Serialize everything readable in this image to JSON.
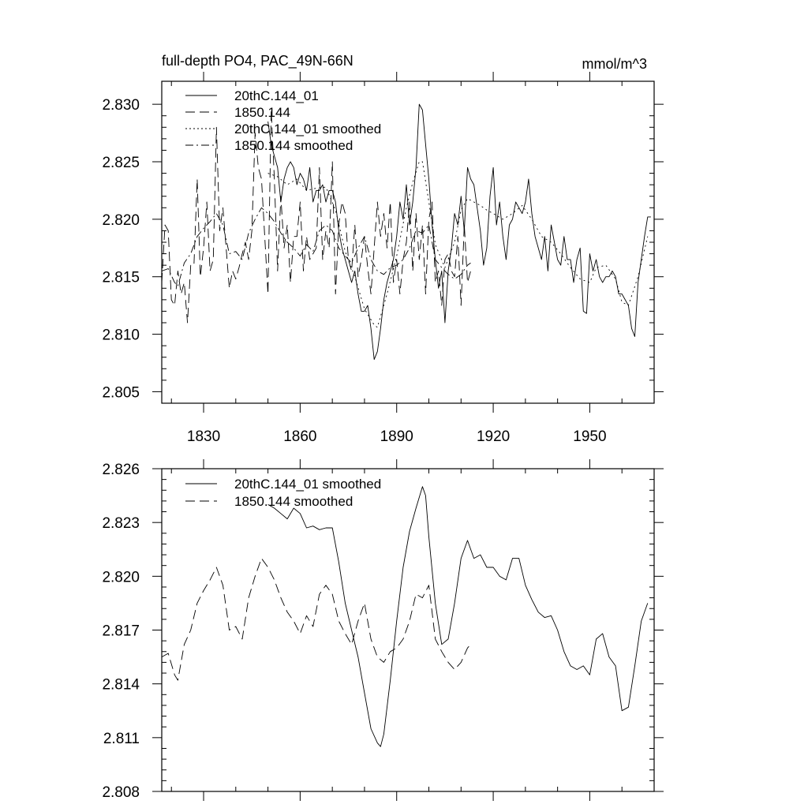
{
  "page": {
    "title_left": "full-depth PO4, PAC_49N-66N",
    "units_right": "mmol/m^3"
  },
  "chart_data": [
    {
      "type": "line",
      "title": "full-depth PO4, PAC_49N-66N",
      "ylabel": "mmol/m^3",
      "xlim": [
        1817,
        1970
      ],
      "ylim": [
        2.804,
        2.832
      ],
      "xticks": [
        1830,
        1860,
        1890,
        1920,
        1950
      ],
      "xtick_labels": [
        "1830",
        "1860",
        "1890",
        "1920",
        "1950"
      ],
      "yticks": [
        2.805,
        2.81,
        2.815,
        2.82,
        2.825,
        2.83
      ],
      "ytick_labels": [
        "2.805",
        "2.810",
        "2.815",
        "2.820",
        "2.825",
        "2.830"
      ],
      "grid": false,
      "legend_position": "top-left",
      "series": [
        {
          "name": "20thC.144_01",
          "style": "solid",
          "x": [
            1850,
            1851,
            1852,
            1853,
            1854,
            1855,
            1856,
            1857,
            1858,
            1859,
            1860,
            1861,
            1862,
            1863,
            1864,
            1865,
            1866,
            1867,
            1868,
            1869,
            1870,
            1871,
            1872,
            1873,
            1874,
            1875,
            1876,
            1877,
            1878,
            1879,
            1880,
            1881,
            1882,
            1883,
            1884,
            1885,
            1886,
            1887,
            1888,
            1889,
            1890,
            1891,
            1892,
            1893,
            1894,
            1895,
            1896,
            1897,
            1898,
            1899,
            1900,
            1901,
            1902,
            1903,
            1904,
            1905,
            1906,
            1907,
            1908,
            1909,
            1910,
            1911,
            1912,
            1913,
            1914,
            1915,
            1916,
            1917,
            1918,
            1919,
            1920,
            1921,
            1922,
            1923,
            1924,
            1925,
            1926,
            1927,
            1928,
            1929,
            1930,
            1931,
            1932,
            1933,
            1934,
            1935,
            1936,
            1937,
            1938,
            1939,
            1940,
            1941,
            1942,
            1943,
            1944,
            1945,
            1946,
            1947,
            1948,
            1949,
            1950,
            1951,
            1952,
            1953,
            1954,
            1955,
            1956,
            1957,
            1958,
            1959,
            1960,
            1961,
            1962,
            1963,
            1964,
            1965,
            1966,
            1967,
            1968,
            1969
          ],
          "values": [
            2.8285,
            2.8265,
            2.8255,
            2.8245,
            2.8215,
            2.8235,
            2.8245,
            2.825,
            2.8245,
            2.823,
            2.824,
            2.8235,
            2.8225,
            2.8245,
            2.8215,
            2.8225,
            2.8225,
            2.823,
            2.8215,
            2.8225,
            2.8225,
            2.8215,
            2.819,
            2.8175,
            2.8165,
            2.8155,
            2.8145,
            2.8155,
            2.8135,
            2.812,
            2.812,
            2.8125,
            2.8105,
            2.8078,
            2.8085,
            2.8105,
            2.813,
            2.8145,
            2.8155,
            2.8165,
            2.8185,
            2.8215,
            2.82,
            2.823,
            2.8195,
            2.8215,
            2.8245,
            2.83,
            2.8295,
            2.8265,
            2.8235,
            2.8195,
            2.8165,
            2.814,
            2.8155,
            2.811,
            2.8155,
            2.8175,
            2.8205,
            2.8195,
            2.822,
            2.819,
            2.8245,
            2.8235,
            2.823,
            2.821,
            2.819,
            2.816,
            2.8175,
            2.822,
            2.8245,
            2.8195,
            2.8215,
            2.8185,
            2.8165,
            2.8195,
            2.82,
            2.8215,
            2.821,
            2.8205,
            2.8215,
            2.8235,
            2.8205,
            2.8185,
            2.8175,
            2.8165,
            2.8185,
            2.8155,
            2.8195,
            2.818,
            2.8165,
            2.816,
            2.8185,
            2.8165,
            2.8165,
            2.8145,
            2.8165,
            2.8175,
            2.812,
            2.8118,
            2.817,
            2.8155,
            2.8165,
            2.815,
            2.8145,
            2.815,
            2.815,
            2.8155,
            2.815,
            2.8135,
            2.8135,
            2.813,
            2.8125,
            2.8105,
            2.8098,
            2.8145,
            2.8165,
            2.8185,
            2.8202,
            2.8202
          ]
        },
        {
          "name": "1850.144",
          "style": "dashed",
          "x": [
            1817,
            1818,
            1819,
            1820,
            1821,
            1822,
            1823,
            1824,
            1825,
            1826,
            1827,
            1828,
            1829,
            1830,
            1831,
            1832,
            1833,
            1834,
            1835,
            1836,
            1837,
            1838,
            1839,
            1840,
            1841,
            1842,
            1843,
            1844,
            1845,
            1846,
            1847,
            1848,
            1849,
            1850,
            1851,
            1852,
            1853,
            1854,
            1855,
            1856,
            1857,
            1858,
            1859,
            1860,
            1861,
            1862,
            1863,
            1864,
            1865,
            1866,
            1867,
            1868,
            1869,
            1870,
            1871,
            1872,
            1873,
            1874,
            1875,
            1876,
            1877,
            1878,
            1879,
            1880,
            1881,
            1882,
            1883,
            1884,
            1885,
            1886,
            1887,
            1888,
            1889,
            1890,
            1891,
            1892,
            1893,
            1894,
            1895,
            1896,
            1897,
            1898,
            1899,
            1900,
            1901,
            1902,
            1903,
            1904,
            1905,
            1906,
            1907,
            1908,
            1909,
            1910,
            1911,
            1912,
            1913
          ],
          "values": [
            2.8145,
            2.8195,
            2.819,
            2.813,
            2.8125,
            2.8155,
            2.8135,
            2.8145,
            2.811,
            2.816,
            2.816,
            2.8235,
            2.815,
            2.8175,
            2.8215,
            2.8155,
            2.8165,
            2.828,
            2.819,
            2.821,
            2.8175,
            2.814,
            2.8155,
            2.8148,
            2.8158,
            2.817,
            2.818,
            2.8165,
            2.819,
            2.8275,
            2.8245,
            2.8235,
            2.8185,
            2.8135,
            2.8295,
            2.8235,
            2.8155,
            2.822,
            2.8175,
            2.8195,
            2.8145,
            2.8185,
            2.8185,
            2.8215,
            2.8155,
            2.8185,
            2.8165,
            2.817,
            2.8175,
            2.8245,
            2.8165,
            2.819,
            2.8175,
            2.825,
            2.8135,
            2.8195,
            2.8215,
            2.8205,
            2.8165,
            2.8155,
            2.8195,
            2.815,
            2.8165,
            2.8185,
            2.8158,
            2.8135,
            2.8175,
            2.8215,
            2.8185,
            2.8205,
            2.8175,
            2.8215,
            2.8145,
            2.8165,
            2.8135,
            2.8165,
            2.818,
            2.8215,
            2.8155,
            2.8205,
            2.8165,
            2.8195,
            2.8135,
            2.82,
            2.8215,
            2.8145,
            2.8155,
            2.8125,
            2.8165,
            2.817,
            2.8155,
            2.815,
            2.8185,
            2.8125,
            2.8195,
            2.8145,
            2.8155
          ]
        },
        {
          "name": "20thC.144_01 smoothed",
          "style": "dotted",
          "x": [
            1850,
            1853,
            1856,
            1859,
            1862,
            1865,
            1868,
            1871,
            1874,
            1877,
            1880,
            1883,
            1884,
            1887,
            1890,
            1893,
            1895,
            1897,
            1898,
            1900,
            1902,
            1905,
            1908,
            1910,
            1912,
            1914,
            1916,
            1918,
            1920,
            1923,
            1926,
            1929,
            1932,
            1935,
            1938,
            1941,
            1944,
            1947,
            1950,
            1952,
            1955,
            1958,
            1960,
            1962,
            1965,
            1968
          ],
          "values": [
            2.824,
            2.8237,
            2.823,
            2.8235,
            2.8225,
            2.8227,
            2.8228,
            2.8208,
            2.8172,
            2.815,
            2.8122,
            2.8108,
            2.8106,
            2.8135,
            2.8168,
            2.821,
            2.8232,
            2.825,
            2.825,
            2.8215,
            2.8178,
            2.8158,
            2.818,
            2.8208,
            2.8218,
            2.8215,
            2.8212,
            2.8208,
            2.8205,
            2.82,
            2.8205,
            2.8212,
            2.82,
            2.8185,
            2.818,
            2.817,
            2.8158,
            2.8148,
            2.8145,
            2.8158,
            2.816,
            2.8148,
            2.8128,
            2.8125,
            2.815,
            2.8185
          ]
        },
        {
          "name": "1850.144 smoothed",
          "style": "dashdot",
          "x": [
            1817,
            1819,
            1821,
            1822,
            1824,
            1826,
            1828,
            1830,
            1832,
            1834,
            1836,
            1838,
            1840,
            1842,
            1844,
            1846,
            1848,
            1850,
            1852,
            1854,
            1856,
            1858,
            1860,
            1862,
            1864,
            1866,
            1868,
            1870,
            1872,
            1874,
            1876,
            1878,
            1880,
            1882,
            1884,
            1886,
            1888,
            1890,
            1892,
            1894,
            1896,
            1898,
            1900,
            1902,
            1904,
            1906,
            1908,
            1910,
            1912,
            1913
          ],
          "values": [
            2.8155,
            2.8157,
            2.8145,
            2.8142,
            2.8162,
            2.817,
            2.8185,
            2.8192,
            2.8198,
            2.8205,
            2.8195,
            2.817,
            2.8172,
            2.8165,
            2.8188,
            2.82,
            2.821,
            2.8205,
            2.8198,
            2.8188,
            2.818,
            2.8175,
            2.8168,
            2.8178,
            2.8172,
            2.819,
            2.8195,
            2.819,
            2.8175,
            2.8168,
            2.8162,
            2.8175,
            2.8185,
            2.8165,
            2.8155,
            2.8152,
            2.8158,
            2.816,
            2.8165,
            2.8175,
            2.819,
            2.8188,
            2.8195,
            2.8165,
            2.8158,
            2.8152,
            2.8148,
            2.8152,
            2.816,
            2.8162
          ]
        }
      ]
    },
    {
      "type": "line",
      "xlim": [
        1817,
        1970
      ],
      "ylim": [
        2.808,
        2.826
      ],
      "xticks": [
        1830,
        1860,
        1890,
        1920,
        1950
      ],
      "yticks": [
        2.808,
        2.811,
        2.814,
        2.817,
        2.82,
        2.823,
        2.826
      ],
      "ytick_labels": [
        "2.808",
        "2.811",
        "2.814",
        "2.817",
        "2.820",
        "2.823",
        "2.826"
      ],
      "grid": false,
      "legend_position": "top-left",
      "series": [
        {
          "name": "20thC.144_01 smoothed",
          "style": "solid",
          "x": [
            1850,
            1852,
            1854,
            1856,
            1858,
            1860,
            1862,
            1864,
            1866,
            1868,
            1870,
            1872,
            1874,
            1876,
            1878,
            1880,
            1882,
            1884,
            1885,
            1886,
            1888,
            1890,
            1892,
            1894,
            1896,
            1898,
            1899,
            1900,
            1902,
            1904,
            1906,
            1908,
            1910,
            1912,
            1914,
            1916,
            1918,
            1920,
            1922,
            1924,
            1926,
            1928,
            1930,
            1932,
            1934,
            1936,
            1938,
            1940,
            1942,
            1944,
            1946,
            1948,
            1950,
            1952,
            1954,
            1956,
            1958,
            1960,
            1962,
            1964,
            1966,
            1968
          ],
          "values": [
            2.824,
            2.8238,
            2.8235,
            2.8232,
            2.8238,
            2.8235,
            2.8227,
            2.8228,
            2.8226,
            2.8227,
            2.8227,
            2.8208,
            2.8185,
            2.817,
            2.8155,
            2.8135,
            2.8115,
            2.8107,
            2.8105,
            2.8112,
            2.8142,
            2.8175,
            2.8205,
            2.8225,
            2.8238,
            2.825,
            2.8245,
            2.8222,
            2.8185,
            2.8162,
            2.8165,
            2.8185,
            2.821,
            2.822,
            2.821,
            2.8212,
            2.8205,
            2.8205,
            2.82,
            2.8198,
            2.821,
            2.821,
            2.8195,
            2.8187,
            2.818,
            2.8177,
            2.8178,
            2.817,
            2.8158,
            2.815,
            2.8148,
            2.815,
            2.8145,
            2.8165,
            2.8168,
            2.8155,
            2.815,
            2.8125,
            2.8127,
            2.815,
            2.8175,
            2.8185
          ]
        },
        {
          "name": "1850.144 smoothed",
          "style": "dashed",
          "x": [
            1817,
            1819,
            1821,
            1822,
            1824,
            1826,
            1828,
            1830,
            1832,
            1834,
            1836,
            1838,
            1840,
            1842,
            1844,
            1846,
            1848,
            1850,
            1852,
            1854,
            1856,
            1858,
            1860,
            1862,
            1864,
            1866,
            1868,
            1870,
            1872,
            1874,
            1876,
            1878,
            1880,
            1882,
            1884,
            1886,
            1888,
            1890,
            1892,
            1894,
            1896,
            1898,
            1900,
            1902,
            1904,
            1906,
            1908,
            1910,
            1912,
            1913
          ],
          "values": [
            2.8155,
            2.8157,
            2.8145,
            2.8142,
            2.8162,
            2.817,
            2.8185,
            2.8192,
            2.8198,
            2.8205,
            2.8195,
            2.817,
            2.8172,
            2.8165,
            2.8188,
            2.82,
            2.821,
            2.8205,
            2.8198,
            2.8188,
            2.818,
            2.8175,
            2.8168,
            2.8178,
            2.8172,
            2.819,
            2.8195,
            2.819,
            2.8175,
            2.8168,
            2.8162,
            2.8175,
            2.8185,
            2.8165,
            2.8155,
            2.8152,
            2.8158,
            2.816,
            2.8165,
            2.8175,
            2.819,
            2.8188,
            2.8195,
            2.8165,
            2.8158,
            2.8152,
            2.8148,
            2.8152,
            2.816,
            2.8162
          ]
        }
      ]
    }
  ]
}
